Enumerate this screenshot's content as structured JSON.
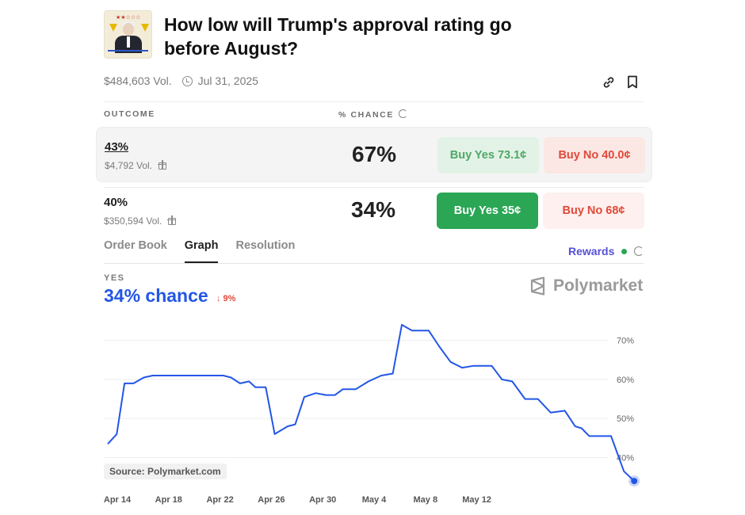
{
  "market": {
    "title": "How low will Trump's approval rating go before August?",
    "volume": "$484,603 Vol.",
    "end_date": "Jul 31, 2025",
    "link_icon": "link-icon",
    "bookmark_icon": "bookmark-icon"
  },
  "table": {
    "outcome_header": "OUTCOME",
    "chance_header": "% CHANCE",
    "rows": [
      {
        "name": "43%",
        "volume": "$4,792 Vol.",
        "chance": "67%",
        "buy_yes": "Buy Yes 73.1¢",
        "buy_no": "Buy No 40.0¢"
      },
      {
        "name": "40%",
        "volume": "$350,594 Vol.",
        "chance": "34%",
        "buy_yes": "Buy Yes 35¢",
        "buy_no": "Buy No 68¢"
      }
    ]
  },
  "tabs": [
    "Order Book",
    "Graph",
    "Resolution"
  ],
  "active_tab": "Graph",
  "rewards_label": "Rewards",
  "graph": {
    "outcome_label": "YES",
    "chance_text": "34% chance",
    "delta_text": "↓ 9%",
    "brand": "Polymarket",
    "source": "Source: Polymarket.com"
  },
  "colors": {
    "line": "#2356e6",
    "yes": "#2aa655",
    "no": "#e0493a",
    "rewards": "#5550d6"
  },
  "chart_data": {
    "type": "line",
    "x_labels": [
      "Apr 14",
      "Apr 18",
      "Apr 22",
      "Apr 26",
      "Apr 30",
      "May 4",
      "May 8",
      "May 12"
    ],
    "y_ticks": [
      "70%",
      "60%",
      "50%",
      "40%"
    ],
    "ylim": [
      33,
      75
    ],
    "series": [
      {
        "x": [
          0,
          0.7,
          1.3,
          2,
          2.8,
          3.5,
          5,
          7,
          8.4,
          9,
          9.6,
          10.3,
          11,
          11.5,
          12.3,
          13,
          14,
          14.6,
          15.3,
          16.2,
          17,
          17.7,
          18.3,
          19.3,
          20.3,
          21.3,
          22.2,
          22.9,
          23.7,
          24.3,
          25,
          25.8,
          26.7,
          27.6,
          28.5,
          29.3,
          29.9,
          30.7,
          31.5,
          32.5,
          33.5,
          34.5,
          35.6,
          36.4,
          36.9,
          37.5,
          38.2,
          39.2,
          40.2,
          41
        ],
        "values": [
          43.5,
          46,
          59,
          59,
          60.5,
          61,
          61,
          61,
          61,
          61,
          60.5,
          59,
          59.5,
          58,
          58,
          46,
          48,
          48.5,
          55.5,
          56.5,
          56,
          56,
          57.5,
          57.5,
          59.5,
          61,
          61.5,
          74,
          72.5,
          72.5,
          72.5,
          68.5,
          64.5,
          63,
          63.5,
          63.5,
          63.5,
          60,
          59.5,
          55,
          55,
          51.5,
          52,
          48,
          47.5,
          45.5,
          45.5,
          45.5,
          36.5,
          34
        ]
      }
    ]
  }
}
